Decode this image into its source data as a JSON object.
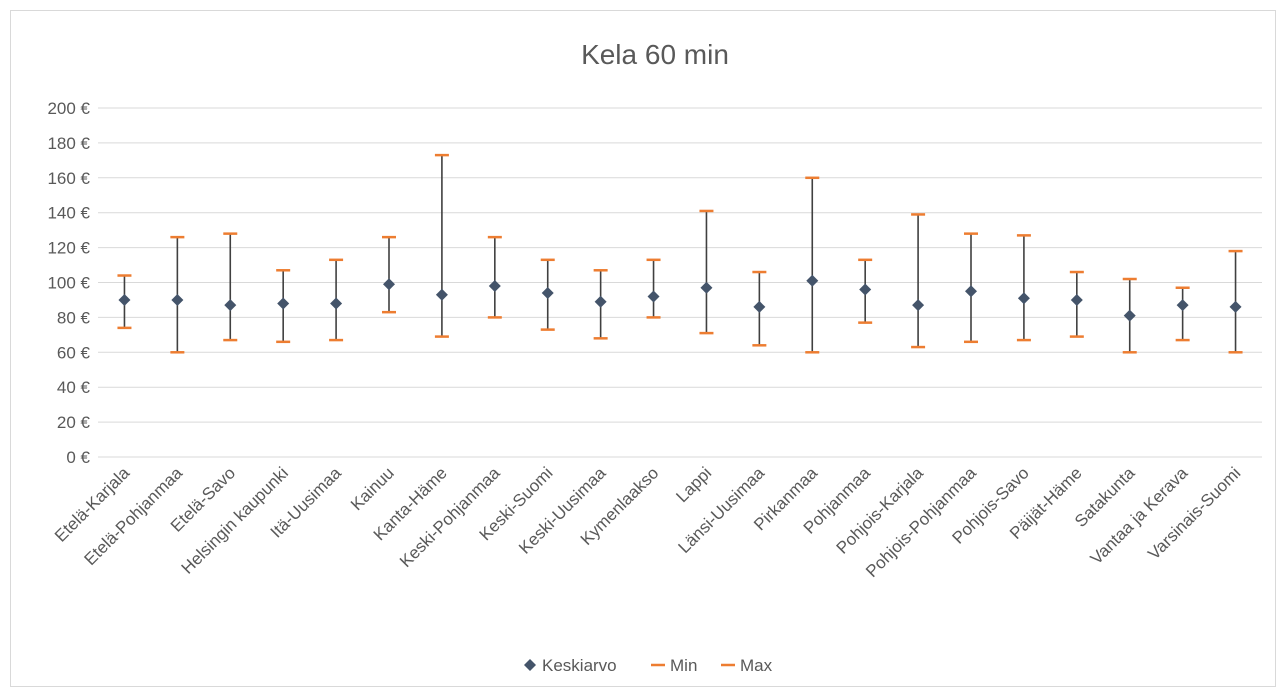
{
  "chart_data": {
    "type": "scatter",
    "title": "Kela 60 min",
    "xlabel": "",
    "ylabel": "",
    "ylim": [
      0,
      200
    ],
    "y_tick_step": 20,
    "y_tick_labels": [
      "0 €",
      "20 €",
      "40 €",
      "60 €",
      "80 €",
      "100 €",
      "120 €",
      "140 €",
      "160 €",
      "180 €",
      "200 €"
    ],
    "grid": true,
    "legend_position": "bottom",
    "categories": [
      "Etelä-Karjala",
      "Etelä-Pohjanmaa",
      "Etelä-Savo",
      "Helsingin kaupunki",
      "Itä-Uusimaa",
      "Kainuu",
      "Kanta-Häme",
      "Keski-Pohjanmaa",
      "Keski-Suomi",
      "Keski-Uusimaa",
      "Kymenlaakso",
      "Lappi",
      "Länsi-Uusimaa",
      "Pirkanmaa",
      "Pohjanmaa",
      "Pohjois-Karjala",
      "Pohjois-Pohjanmaa",
      "Pohjois-Savo",
      "Päijät-Häme",
      "Satakunta",
      "Vantaa ja Kerava",
      "Varsinais-Suomi"
    ],
    "series": [
      {
        "name": "Keskiarvo",
        "color": "#44546a",
        "marker": "diamond",
        "values": [
          90,
          90,
          87,
          88,
          88,
          99,
          93,
          98,
          94,
          89,
          92,
          97,
          86,
          101,
          96,
          87,
          95,
          91,
          90,
          81,
          87,
          86
        ]
      },
      {
        "name": "Min",
        "color": "#ed7d31",
        "marker": "dash",
        "values": [
          74,
          60,
          67,
          66,
          67,
          83,
          69,
          80,
          73,
          68,
          80,
          71,
          64,
          60,
          77,
          63,
          66,
          67,
          69,
          60,
          67,
          60
        ]
      },
      {
        "name": "Max",
        "color": "#ed7d31",
        "marker": "dash",
        "values": [
          104,
          126,
          128,
          107,
          113,
          126,
          173,
          126,
          113,
          107,
          113,
          141,
          106,
          160,
          113,
          139,
          128,
          127,
          106,
          102,
          97,
          118
        ]
      }
    ],
    "range_line_color": "#404040",
    "grid_color": "#d9d9d9"
  }
}
